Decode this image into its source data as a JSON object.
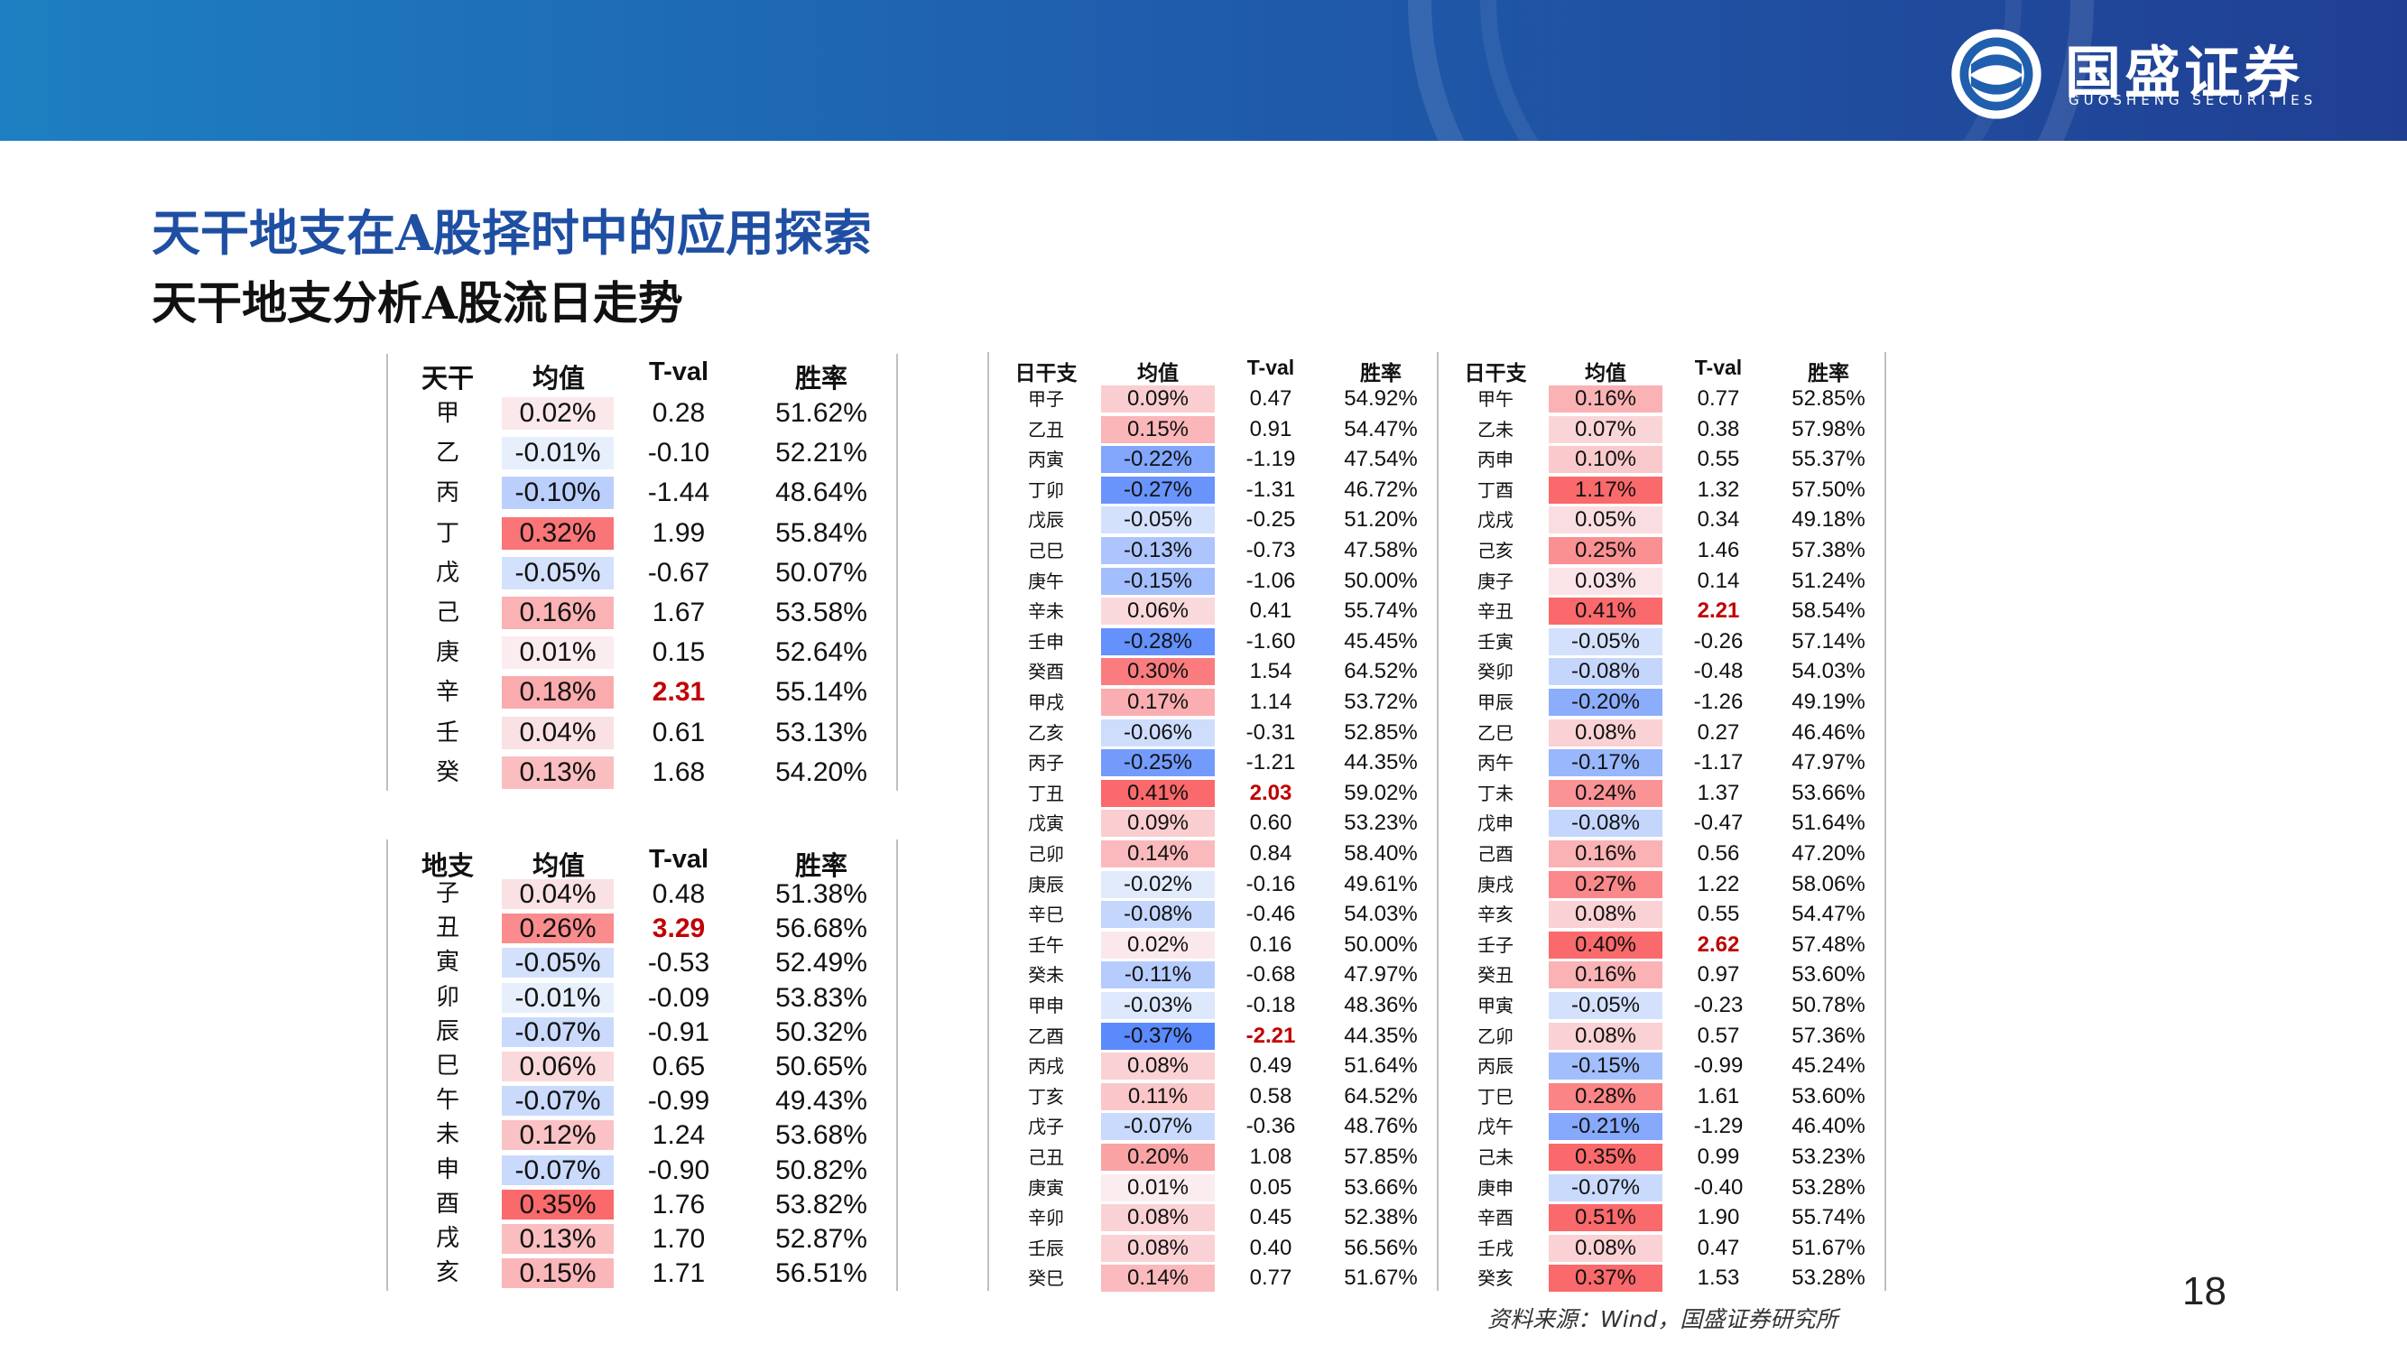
{
  "header": {
    "logo_cn": "国盛证券",
    "logo_en": "GUOSHENG SECURITIES"
  },
  "title": "天干地支在A股择时中的应用探索",
  "subtitle": "天干地支分析A股流日走势",
  "colors": {
    "header_left": "#1d7fc1",
    "header_right": "#203f93",
    "title_blue": "#1f4fa3",
    "highlight_red": "#c00000",
    "positive_red": "#f8696b",
    "negative_blue": "#5a8ac6"
  },
  "tiangan_table": {
    "headers": [
      "天干",
      "均值",
      "T-val",
      "胜率"
    ],
    "rows": [
      {
        "label": "甲",
        "mean": "0.02%",
        "m": 0.02,
        "tval": "0.28",
        "win": "51.62%",
        "bold": false
      },
      {
        "label": "乙",
        "mean": "-0.01%",
        "m": -0.01,
        "tval": "-0.10",
        "win": "52.21%",
        "bold": false
      },
      {
        "label": "丙",
        "mean": "-0.10%",
        "m": -0.1,
        "tval": "-1.44",
        "win": "48.64%",
        "bold": false
      },
      {
        "label": "丁",
        "mean": "0.32%",
        "m": 0.32,
        "tval": "1.99",
        "win": "55.84%",
        "bold": false
      },
      {
        "label": "戊",
        "mean": "-0.05%",
        "m": -0.05,
        "tval": "-0.67",
        "win": "50.07%",
        "bold": false
      },
      {
        "label": "己",
        "mean": "0.16%",
        "m": 0.16,
        "tval": "1.67",
        "win": "53.58%",
        "bold": false
      },
      {
        "label": "庚",
        "mean": "0.01%",
        "m": 0.01,
        "tval": "0.15",
        "win": "52.64%",
        "bold": false
      },
      {
        "label": "辛",
        "mean": "0.18%",
        "m": 0.18,
        "tval": "2.31",
        "win": "55.14%",
        "bold": true
      },
      {
        "label": "壬",
        "mean": "0.04%",
        "m": 0.04,
        "tval": "0.61",
        "win": "53.13%",
        "bold": false
      },
      {
        "label": "癸",
        "mean": "0.13%",
        "m": 0.13,
        "tval": "1.68",
        "win": "54.20%",
        "bold": false
      }
    ]
  },
  "dizhi_table": {
    "headers": [
      "地支",
      "均值",
      "T-val",
      "胜率"
    ],
    "rows": [
      {
        "label": "子",
        "mean": "0.04%",
        "m": 0.04,
        "tval": "0.48",
        "win": "51.38%",
        "bold": false
      },
      {
        "label": "丑",
        "mean": "0.26%",
        "m": 0.26,
        "tval": "3.29",
        "win": "56.68%",
        "bold": true
      },
      {
        "label": "寅",
        "mean": "-0.05%",
        "m": -0.05,
        "tval": "-0.53",
        "win": "52.49%",
        "bold": false
      },
      {
        "label": "卯",
        "mean": "-0.01%",
        "m": -0.01,
        "tval": "-0.09",
        "win": "53.83%",
        "bold": false
      },
      {
        "label": "辰",
        "mean": "-0.07%",
        "m": -0.07,
        "tval": "-0.91",
        "win": "50.32%",
        "bold": false
      },
      {
        "label": "巳",
        "mean": "0.06%",
        "m": 0.06,
        "tval": "0.65",
        "win": "50.65%",
        "bold": false
      },
      {
        "label": "午",
        "mean": "-0.07%",
        "m": -0.07,
        "tval": "-0.99",
        "win": "49.43%",
        "bold": false
      },
      {
        "label": "未",
        "mean": "0.12%",
        "m": 0.12,
        "tval": "1.24",
        "win": "53.68%",
        "bold": false
      },
      {
        "label": "申",
        "mean": "-0.07%",
        "m": -0.07,
        "tval": "-0.90",
        "win": "50.82%",
        "bold": false
      },
      {
        "label": "酉",
        "mean": "0.35%",
        "m": 0.35,
        "tval": "1.76",
        "win": "53.82%",
        "bold": false
      },
      {
        "label": "戌",
        "mean": "0.13%",
        "m": 0.13,
        "tval": "1.70",
        "win": "52.87%",
        "bold": false
      },
      {
        "label": "亥",
        "mean": "0.15%",
        "m": 0.15,
        "tval": "1.71",
        "win": "56.51%",
        "bold": false
      }
    ]
  },
  "ganzhi_table_1": {
    "headers": [
      "日干支",
      "均值",
      "T-val",
      "胜率"
    ],
    "rows": [
      {
        "label": "甲子",
        "mean": "0.09%",
        "m": 0.09,
        "tval": "0.47",
        "win": "54.92%",
        "bold": false
      },
      {
        "label": "乙丑",
        "mean": "0.15%",
        "m": 0.15,
        "tval": "0.91",
        "win": "54.47%",
        "bold": false
      },
      {
        "label": "丙寅",
        "mean": "-0.22%",
        "m": -0.22,
        "tval": "-1.19",
        "win": "47.54%",
        "bold": false
      },
      {
        "label": "丁卯",
        "mean": "-0.27%",
        "m": -0.27,
        "tval": "-1.31",
        "win": "46.72%",
        "bold": false
      },
      {
        "label": "戊辰",
        "mean": "-0.05%",
        "m": -0.05,
        "tval": "-0.25",
        "win": "51.20%",
        "bold": false
      },
      {
        "label": "己巳",
        "mean": "-0.13%",
        "m": -0.13,
        "tval": "-0.73",
        "win": "47.58%",
        "bold": false
      },
      {
        "label": "庚午",
        "mean": "-0.15%",
        "m": -0.15,
        "tval": "-1.06",
        "win": "50.00%",
        "bold": false
      },
      {
        "label": "辛未",
        "mean": "0.06%",
        "m": 0.06,
        "tval": "0.41",
        "win": "55.74%",
        "bold": false
      },
      {
        "label": "壬申",
        "mean": "-0.28%",
        "m": -0.28,
        "tval": "-1.60",
        "win": "45.45%",
        "bold": false
      },
      {
        "label": "癸酉",
        "mean": "0.30%",
        "m": 0.3,
        "tval": "1.54",
        "win": "64.52%",
        "bold": false
      },
      {
        "label": "甲戌",
        "mean": "0.17%",
        "m": 0.17,
        "tval": "1.14",
        "win": "53.72%",
        "bold": false
      },
      {
        "label": "乙亥",
        "mean": "-0.06%",
        "m": -0.06,
        "tval": "-0.31",
        "win": "52.85%",
        "bold": false
      },
      {
        "label": "丙子",
        "mean": "-0.25%",
        "m": -0.25,
        "tval": "-1.21",
        "win": "44.35%",
        "bold": false
      },
      {
        "label": "丁丑",
        "mean": "0.41%",
        "m": 0.41,
        "tval": "2.03",
        "win": "59.02%",
        "bold": true
      },
      {
        "label": "戊寅",
        "mean": "0.09%",
        "m": 0.09,
        "tval": "0.60",
        "win": "53.23%",
        "bold": false
      },
      {
        "label": "己卯",
        "mean": "0.14%",
        "m": 0.14,
        "tval": "0.84",
        "win": "58.40%",
        "bold": false
      },
      {
        "label": "庚辰",
        "mean": "-0.02%",
        "m": -0.02,
        "tval": "-0.16",
        "win": "49.61%",
        "bold": false
      },
      {
        "label": "辛巳",
        "mean": "-0.08%",
        "m": -0.08,
        "tval": "-0.46",
        "win": "54.03%",
        "bold": false
      },
      {
        "label": "壬午",
        "mean": "0.02%",
        "m": 0.02,
        "tval": "0.16",
        "win": "50.00%",
        "bold": false
      },
      {
        "label": "癸未",
        "mean": "-0.11%",
        "m": -0.11,
        "tval": "-0.68",
        "win": "47.97%",
        "bold": false
      },
      {
        "label": "甲申",
        "mean": "-0.03%",
        "m": -0.03,
        "tval": "-0.18",
        "win": "48.36%",
        "bold": false
      },
      {
        "label": "乙酉",
        "mean": "-0.37%",
        "m": -0.37,
        "tval": "-2.21",
        "win": "44.35%",
        "bold": true
      },
      {
        "label": "丙戌",
        "mean": "0.08%",
        "m": 0.08,
        "tval": "0.49",
        "win": "51.64%",
        "bold": false
      },
      {
        "label": "丁亥",
        "mean": "0.11%",
        "m": 0.11,
        "tval": "0.58",
        "win": "64.52%",
        "bold": false
      },
      {
        "label": "戊子",
        "mean": "-0.07%",
        "m": -0.07,
        "tval": "-0.36",
        "win": "48.76%",
        "bold": false
      },
      {
        "label": "己丑",
        "mean": "0.20%",
        "m": 0.2,
        "tval": "1.08",
        "win": "57.85%",
        "bold": false
      },
      {
        "label": "庚寅",
        "mean": "0.01%",
        "m": 0.01,
        "tval": "0.05",
        "win": "53.66%",
        "bold": false
      },
      {
        "label": "辛卯",
        "mean": "0.08%",
        "m": 0.08,
        "tval": "0.45",
        "win": "52.38%",
        "bold": false
      },
      {
        "label": "壬辰",
        "mean": "0.08%",
        "m": 0.08,
        "tval": "0.40",
        "win": "56.56%",
        "bold": false
      },
      {
        "label": "癸巳",
        "mean": "0.14%",
        "m": 0.14,
        "tval": "0.77",
        "win": "51.67%",
        "bold": false
      }
    ]
  },
  "ganzhi_table_2": {
    "headers": [
      "日干支",
      "均值",
      "T-val",
      "胜率"
    ],
    "rows": [
      {
        "label": "甲午",
        "mean": "0.16%",
        "m": 0.16,
        "tval": "0.77",
        "win": "52.85%",
        "bold": false
      },
      {
        "label": "乙未",
        "mean": "0.07%",
        "m": 0.07,
        "tval": "0.38",
        "win": "57.98%",
        "bold": false
      },
      {
        "label": "丙申",
        "mean": "0.10%",
        "m": 0.1,
        "tval": "0.55",
        "win": "55.37%",
        "bold": false
      },
      {
        "label": "丁酉",
        "mean": "1.17%",
        "m": 1.17,
        "tval": "1.32",
        "win": "57.50%",
        "bold": false
      },
      {
        "label": "戊戌",
        "mean": "0.05%",
        "m": 0.05,
        "tval": "0.34",
        "win": "49.18%",
        "bold": false
      },
      {
        "label": "己亥",
        "mean": "0.25%",
        "m": 0.25,
        "tval": "1.46",
        "win": "57.38%",
        "bold": false
      },
      {
        "label": "庚子",
        "mean": "0.03%",
        "m": 0.03,
        "tval": "0.14",
        "win": "51.24%",
        "bold": false
      },
      {
        "label": "辛丑",
        "mean": "0.41%",
        "m": 0.41,
        "tval": "2.21",
        "win": "58.54%",
        "bold": true
      },
      {
        "label": "壬寅",
        "mean": "-0.05%",
        "m": -0.05,
        "tval": "-0.26",
        "win": "57.14%",
        "bold": false
      },
      {
        "label": "癸卯",
        "mean": "-0.08%",
        "m": -0.08,
        "tval": "-0.48",
        "win": "54.03%",
        "bold": false
      },
      {
        "label": "甲辰",
        "mean": "-0.20%",
        "m": -0.2,
        "tval": "-1.26",
        "win": "49.19%",
        "bold": false
      },
      {
        "label": "乙巳",
        "mean": "0.08%",
        "m": 0.08,
        "tval": "0.27",
        "win": "46.46%",
        "bold": false
      },
      {
        "label": "丙午",
        "mean": "-0.17%",
        "m": -0.17,
        "tval": "-1.17",
        "win": "47.97%",
        "bold": false
      },
      {
        "label": "丁未",
        "mean": "0.24%",
        "m": 0.24,
        "tval": "1.37",
        "win": "53.66%",
        "bold": false
      },
      {
        "label": "戊申",
        "mean": "-0.08%",
        "m": -0.08,
        "tval": "-0.47",
        "win": "51.64%",
        "bold": false
      },
      {
        "label": "己酉",
        "mean": "0.16%",
        "m": 0.16,
        "tval": "0.56",
        "win": "47.20%",
        "bold": false
      },
      {
        "label": "庚戌",
        "mean": "0.27%",
        "m": 0.27,
        "tval": "1.22",
        "win": "58.06%",
        "bold": false
      },
      {
        "label": "辛亥",
        "mean": "0.08%",
        "m": 0.08,
        "tval": "0.55",
        "win": "54.47%",
        "bold": false
      },
      {
        "label": "壬子",
        "mean": "0.40%",
        "m": 0.4,
        "tval": "2.62",
        "win": "57.48%",
        "bold": true
      },
      {
        "label": "癸丑",
        "mean": "0.16%",
        "m": 0.16,
        "tval": "0.97",
        "win": "53.60%",
        "bold": false
      },
      {
        "label": "甲寅",
        "mean": "-0.05%",
        "m": -0.05,
        "tval": "-0.23",
        "win": "50.78%",
        "bold": false
      },
      {
        "label": "乙卯",
        "mean": "0.08%",
        "m": 0.08,
        "tval": "0.57",
        "win": "57.36%",
        "bold": false
      },
      {
        "label": "丙辰",
        "mean": "-0.15%",
        "m": -0.15,
        "tval": "-0.99",
        "win": "45.24%",
        "bold": false
      },
      {
        "label": "丁巳",
        "mean": "0.28%",
        "m": 0.28,
        "tval": "1.61",
        "win": "53.60%",
        "bold": false
      },
      {
        "label": "戊午",
        "mean": "-0.21%",
        "m": -0.21,
        "tval": "-1.29",
        "win": "46.40%",
        "bold": false
      },
      {
        "label": "己未",
        "mean": "0.35%",
        "m": 0.35,
        "tval": "0.99",
        "win": "53.23%",
        "bold": false
      },
      {
        "label": "庚申",
        "mean": "-0.07%",
        "m": -0.07,
        "tval": "-0.40",
        "win": "53.28%",
        "bold": false
      },
      {
        "label": "辛酉",
        "mean": "0.51%",
        "m": 0.51,
        "tval": "1.90",
        "win": "55.74%",
        "bold": false
      },
      {
        "label": "壬戌",
        "mean": "0.08%",
        "m": 0.08,
        "tval": "0.47",
        "win": "51.67%",
        "bold": false
      },
      {
        "label": "癸亥",
        "mean": "0.37%",
        "m": 0.37,
        "tval": "1.53",
        "win": "53.28%",
        "bold": false
      }
    ]
  },
  "footer": {
    "source": "资料来源：Wind，国盛证券研究所",
    "page_number": "18"
  }
}
